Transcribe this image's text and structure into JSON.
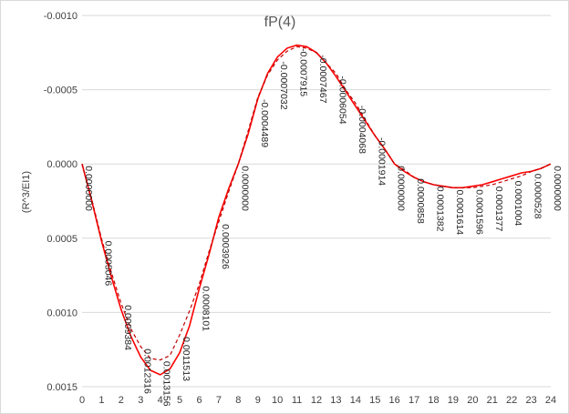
{
  "chart_data": {
    "type": "line",
    "title": "fP(4)",
    "ylabel": "(R^3/EI1)",
    "xlabel": "",
    "xlim": [
      0,
      24
    ],
    "ylim": [
      -0.001,
      0.0015
    ],
    "y_reversed": true,
    "grid": "horizontal",
    "x_ticks": [
      "0",
      "1",
      "2",
      "3",
      "4",
      "5",
      "6",
      "7",
      "8",
      "9",
      "10",
      "11",
      "12",
      "13",
      "14",
      "15",
      "16",
      "17",
      "18",
      "19",
      "20",
      "21",
      "22",
      "23",
      "24"
    ],
    "y_ticks": [
      {
        "v": -0.001,
        "label": "-0.0010"
      },
      {
        "v": -0.0005,
        "label": "-0.0005"
      },
      {
        "v": 0,
        "label": "0.0000"
      },
      {
        "v": 0.0005,
        "label": "0.0005"
      },
      {
        "v": 0.001,
        "label": "0.0010"
      },
      {
        "v": 0.0015,
        "label": "0.0015"
      }
    ],
    "series": [
      {
        "style": "solid",
        "color": "#ff0000",
        "x": [
          0,
          0.5,
          1,
          1.5,
          2,
          2.5,
          3,
          3.5,
          4,
          4.5,
          5,
          5.5,
          6,
          6.5,
          7,
          7.5,
          8,
          8.5,
          9,
          9.5,
          10,
          10.5,
          11,
          11.5,
          12,
          12.5,
          13,
          13.5,
          14,
          14.5,
          15,
          15.5,
          16,
          16.5,
          17,
          17.5,
          18,
          18.5,
          19,
          19.5,
          20,
          20.5,
          21,
          21.5,
          22,
          22.5,
          23,
          23.5,
          24
        ],
        "y": [
          0,
          0.00025,
          0.00052,
          0.00076,
          0.00098,
          0.00116,
          0.0013,
          0.00139,
          0.00142,
          0.00138,
          0.00127,
          0.00109,
          0.00084,
          0.00061,
          0.00036,
          0.00017,
          0.0,
          -0.0002,
          -0.00044,
          -0.00061,
          -0.00072,
          -0.00078,
          -0.0008,
          -0.00079,
          -0.00075,
          -0.00068,
          -0.00059,
          -0.00049,
          -0.00039,
          -0.00029,
          -0.00019,
          -0.0001,
          0.0,
          5e-05,
          9e-05,
          0.00012,
          0.00014,
          0.00015,
          0.00016,
          0.00016,
          0.00015,
          0.00014,
          0.00012,
          0.0001,
          8e-05,
          6e-05,
          5e-05,
          3e-05,
          0.0
        ]
      },
      {
        "style": "dashed",
        "color": "#c00000",
        "x": [
          0,
          0.5,
          1,
          1.5,
          2,
          2.5,
          3,
          3.5,
          4,
          4.5,
          5,
          5.5,
          6,
          6.5,
          7,
          7.5,
          8,
          8.5,
          9,
          9.5,
          10,
          10.5,
          11,
          11.5,
          12,
          12.5,
          13,
          13.5,
          14,
          14.5,
          15,
          15.5,
          16,
          16.5,
          17,
          17.5,
          18,
          18.5,
          19,
          19.5,
          20,
          20.5,
          21,
          21.5,
          22,
          22.5,
          23,
          23.5,
          24
        ],
        "y": [
          0,
          0.00024,
          0.000505,
          0.00073,
          0.000938,
          0.00111,
          0.00123,
          0.00131,
          0.00132,
          0.00129,
          0.00115,
          0.00099,
          0.00081,
          0.00059,
          0.00039,
          0.00019,
          0.0,
          -0.00022,
          -0.00045,
          -0.0006,
          -0.0007,
          -0.00076,
          -0.00079,
          -0.00078,
          -0.00075,
          -0.00068,
          -0.00061,
          -0.0005,
          -0.00041,
          -0.0003,
          -0.00019,
          -0.0001,
          0.0,
          4e-05,
          9e-05,
          0.00012,
          0.00014,
          0.00015,
          0.00016,
          0.00016,
          0.00016,
          0.00015,
          0.00014,
          0.00012,
          0.0001,
          8e-05,
          5e-05,
          3e-05,
          0.0
        ]
      }
    ],
    "data_labels": [
      {
        "x": 0,
        "value": 0.0,
        "text": "0.0000000"
      },
      {
        "x": 1,
        "value": 0.0005046,
        "text": "0.0005046"
      },
      {
        "x": 2,
        "value": 0.0009384,
        "text": "0.0009384"
      },
      {
        "x": 3,
        "value": 0.0012316,
        "text": "0.0012316"
      },
      {
        "x": 4,
        "value": 0.0013156,
        "text": "0.0013156"
      },
      {
        "x": 5,
        "value": 0.0011513,
        "text": "0.0011513"
      },
      {
        "x": 6,
        "value": 0.0008101,
        "text": "0.0008101"
      },
      {
        "x": 7,
        "value": 0.0003926,
        "text": "0.0003926"
      },
      {
        "x": 8,
        "value": 0.0,
        "text": "0.0000000"
      },
      {
        "x": 9,
        "value": -0.0004489,
        "text": "-0.0004489"
      },
      {
        "x": 10,
        "value": -0.0007032,
        "text": "-0.0007032"
      },
      {
        "x": 11,
        "value": -0.0007915,
        "text": "-0.0007915"
      },
      {
        "x": 12,
        "value": -0.0007467,
        "text": "-0.0007467"
      },
      {
        "x": 13,
        "value": -0.0006054,
        "text": "-0.0006054"
      },
      {
        "x": 14,
        "value": -0.0004068,
        "text": "-0.0004068"
      },
      {
        "x": 15,
        "value": -0.0001914,
        "text": "-0.0001914"
      },
      {
        "x": 16,
        "value": 0.0,
        "text": "0.0000000"
      },
      {
        "x": 17,
        "value": 8.58e-05,
        "text": "0.0000858"
      },
      {
        "x": 18,
        "value": 0.0001382,
        "text": "0.0001382"
      },
      {
        "x": 19,
        "value": 0.0001614,
        "text": "0.0001614"
      },
      {
        "x": 20,
        "value": 0.0001596,
        "text": "0.0001596"
      },
      {
        "x": 21,
        "value": 0.0001377,
        "text": "0.0001377"
      },
      {
        "x": 22,
        "value": 0.0001004,
        "text": "0.0001004"
      },
      {
        "x": 23,
        "value": 5.28e-05,
        "text": "0.0000528"
      },
      {
        "x": 24,
        "value": 0.0,
        "text": "0.0000000"
      }
    ]
  }
}
